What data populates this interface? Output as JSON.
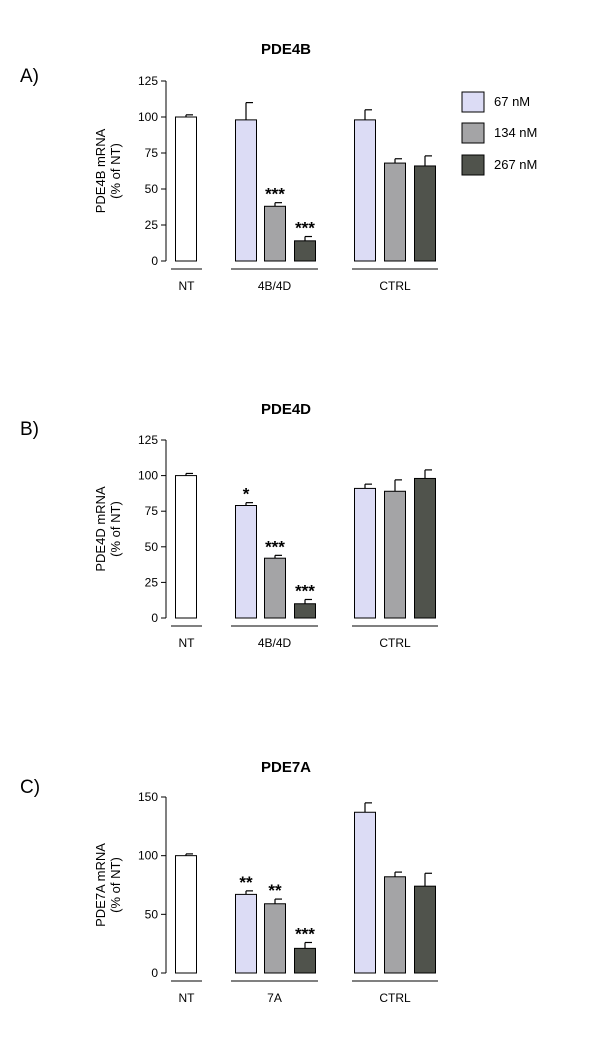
{
  "colors": {
    "nt": "#ffffff",
    "67": "#dcdcf5",
    "134": "#a4a4a6",
    "267": "#50534c"
  },
  "legend": [
    {
      "label": "67 nM",
      "color_key": "67"
    },
    {
      "label": "134 nM",
      "color_key": "134"
    },
    {
      "label": "267 nM",
      "color_key": "267"
    }
  ],
  "chart_data": [
    {
      "type": "bar",
      "panel": "A)",
      "title": "PDE4B",
      "ylabel": [
        "PDE4B mRNA",
        "(% of NT)"
      ],
      "ylim": [
        0,
        125
      ],
      "yticks": [
        0,
        25,
        50,
        75,
        100,
        125
      ],
      "groups": [
        {
          "label": "NT",
          "bars": [
            {
              "series": "nt",
              "value": 100,
              "err": 1.5,
              "sig": ""
            }
          ]
        },
        {
          "label": "4B/4D",
          "bars": [
            {
              "series": "67",
              "value": 98,
              "err": 12,
              "sig": ""
            },
            {
              "series": "134",
              "value": 38,
              "err": 2.5,
              "sig": "***"
            },
            {
              "series": "267",
              "value": 14,
              "err": 3,
              "sig": "***"
            }
          ]
        },
        {
          "label": "CTRL",
          "bars": [
            {
              "series": "67",
              "value": 98,
              "err": 7,
              "sig": ""
            },
            {
              "series": "134",
              "value": 68,
              "err": 3,
              "sig": ""
            },
            {
              "series": "267",
              "value": 66,
              "err": 7,
              "sig": ""
            }
          ]
        }
      ]
    },
    {
      "type": "bar",
      "panel": "B)",
      "title": "PDE4D",
      "ylabel": [
        "PDE4D mRNA",
        "(% of NT)"
      ],
      "ylim": [
        0,
        125
      ],
      "yticks": [
        0,
        25,
        50,
        75,
        100,
        125
      ],
      "groups": [
        {
          "label": "NT",
          "bars": [
            {
              "series": "nt",
              "value": 100,
              "err": 1.5,
              "sig": ""
            }
          ]
        },
        {
          "label": "4B/4D",
          "bars": [
            {
              "series": "67",
              "value": 79,
              "err": 2,
              "sig": "*"
            },
            {
              "series": "134",
              "value": 42,
              "err": 2,
              "sig": "***"
            },
            {
              "series": "267",
              "value": 10,
              "err": 3,
              "sig": "***"
            }
          ]
        },
        {
          "label": "CTRL",
          "bars": [
            {
              "series": "67",
              "value": 91,
              "err": 3,
              "sig": ""
            },
            {
              "series": "134",
              "value": 89,
              "err": 8,
              "sig": ""
            },
            {
              "series": "267",
              "value": 98,
              "err": 6,
              "sig": ""
            }
          ]
        }
      ]
    },
    {
      "type": "bar",
      "panel": "C)",
      "title": "PDE7A",
      "ylabel": [
        "PDE7A mRNA",
        "(% of NT)"
      ],
      "ylim": [
        0,
        150
      ],
      "yticks": [
        0,
        50,
        100,
        150
      ],
      "groups": [
        {
          "label": "NT",
          "bars": [
            {
              "series": "nt",
              "value": 100,
              "err": 1.5,
              "sig": ""
            }
          ]
        },
        {
          "label": "7A",
          "bars": [
            {
              "series": "67",
              "value": 67,
              "err": 3,
              "sig": "**"
            },
            {
              "series": "134",
              "value": 59,
              "err": 4,
              "sig": "**"
            },
            {
              "series": "267",
              "value": 21,
              "err": 5,
              "sig": "***"
            }
          ]
        },
        {
          "label": "CTRL",
          "bars": [
            {
              "series": "67",
              "value": 137,
              "err": 8,
              "sig": ""
            },
            {
              "series": "134",
              "value": 82,
              "err": 4,
              "sig": ""
            },
            {
              "series": "267",
              "value": 74,
              "err": 11,
              "sig": ""
            }
          ]
        }
      ]
    }
  ]
}
